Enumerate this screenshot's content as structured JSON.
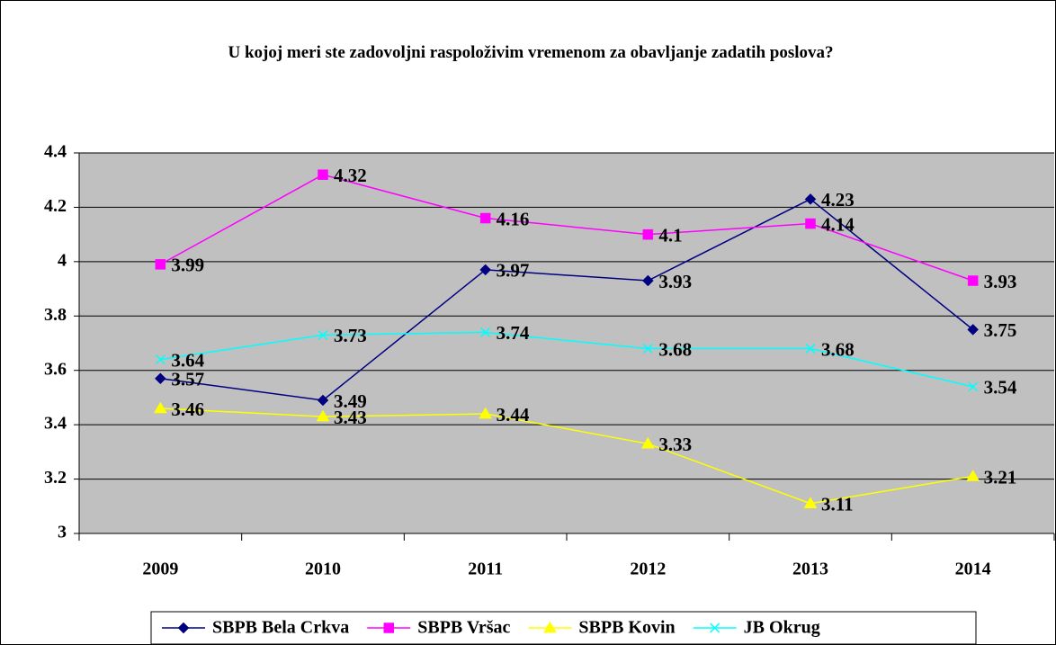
{
  "chart_data": {
    "type": "line",
    "title": "U kojoj meri ste zadovoljni raspoloživim vremenom za obavljanje zadatih poslova?",
    "categories": [
      "2009",
      "2010",
      "2011",
      "2012",
      "2013",
      "2014"
    ],
    "series": [
      {
        "name": "SBPB Bela Crkva",
        "color": "#000080",
        "marker": "diamond",
        "values": [
          3.57,
          3.49,
          3.97,
          3.93,
          4.23,
          3.75
        ]
      },
      {
        "name": "SBPB Vršac",
        "color": "#ff00ff",
        "marker": "square",
        "values": [
          3.99,
          4.32,
          4.16,
          4.1,
          4.14,
          3.93
        ]
      },
      {
        "name": "SBPB Kovin",
        "color": "#ffff00",
        "marker": "triangle",
        "values": [
          3.46,
          3.43,
          3.44,
          3.33,
          3.11,
          3.21
        ]
      },
      {
        "name": "JB Okrug",
        "color": "#00ffff",
        "marker": "x",
        "values": [
          3.64,
          3.73,
          3.74,
          3.68,
          3.68,
          3.54
        ]
      }
    ],
    "ylim": [
      3,
      4.4
    ],
    "yticks": [
      3,
      3.2,
      3.4,
      3.6,
      3.8,
      4,
      4.2,
      4.4
    ],
    "grid": true,
    "legend": "bottom"
  }
}
